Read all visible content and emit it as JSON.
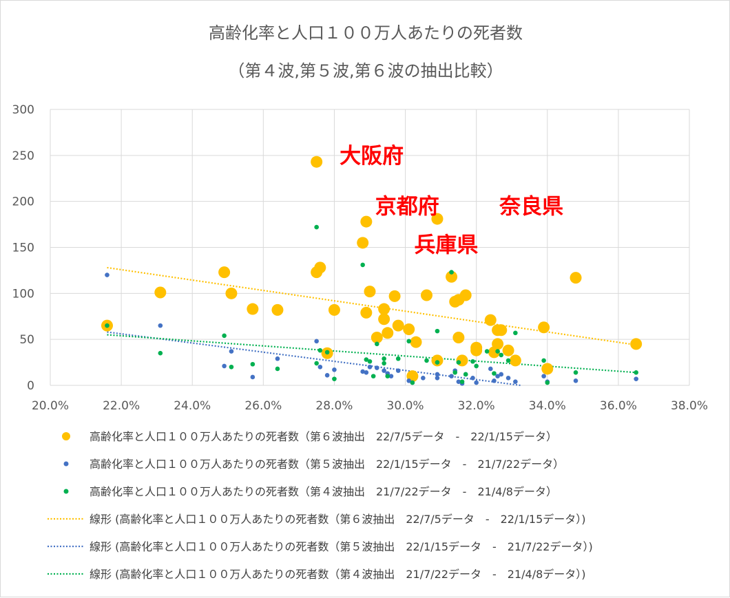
{
  "chart_data": {
    "type": "scatter",
    "title": "高齢化率と人口１００万人あたりの死者数",
    "subtitle": "（第４波,第５波,第６波の抽出比較）",
    "xlim": [
      0.2,
      0.38
    ],
    "ylim": [
      0,
      300
    ],
    "x_ticks": [
      "20.0%",
      "22.0%",
      "24.0%",
      "26.0%",
      "28.0%",
      "30.0%",
      "32.0%",
      "34.0%",
      "36.0%",
      "38.0%"
    ],
    "y_ticks": [
      "0",
      "50",
      "100",
      "150",
      "200",
      "250",
      "300"
    ],
    "grid": true,
    "legend_position": "bottom",
    "annotations": [
      {
        "text": "大阪府",
        "x": 0.2815,
        "y": 250
      },
      {
        "text": "京都府",
        "x": 0.2915,
        "y": 195
      },
      {
        "text": "奈良県",
        "x": 0.3265,
        "y": 195
      },
      {
        "text": "兵庫県",
        "x": 0.3025,
        "y": 153
      }
    ],
    "series": [
      {
        "name": "高齢化率と人口１００万人あたりの死者数（第６波抽出　22/7/5データ　-　22/1/15データ）",
        "color": "#ffc000",
        "marker": "large",
        "points": [
          [
            0.216,
            65
          ],
          [
            0.231,
            101
          ],
          [
            0.249,
            123
          ],
          [
            0.251,
            100
          ],
          [
            0.257,
            83
          ],
          [
            0.264,
            82
          ],
          [
            0.275,
            243
          ],
          [
            0.275,
            123
          ],
          [
            0.276,
            128
          ],
          [
            0.278,
            35
          ],
          [
            0.28,
            82
          ],
          [
            0.288,
            155
          ],
          [
            0.289,
            178
          ],
          [
            0.289,
            79
          ],
          [
            0.29,
            102
          ],
          [
            0.292,
            52
          ],
          [
            0.294,
            83
          ],
          [
            0.294,
            72
          ],
          [
            0.295,
            57
          ],
          [
            0.297,
            97
          ],
          [
            0.298,
            65
          ],
          [
            0.301,
            61
          ],
          [
            0.302,
            10
          ],
          [
            0.303,
            47
          ],
          [
            0.306,
            98
          ],
          [
            0.309,
            181
          ],
          [
            0.309,
            27
          ],
          [
            0.313,
            118
          ],
          [
            0.314,
            91
          ],
          [
            0.315,
            93
          ],
          [
            0.315,
            52
          ],
          [
            0.316,
            27
          ],
          [
            0.317,
            98
          ],
          [
            0.32,
            38
          ],
          [
            0.32,
            41
          ],
          [
            0.324,
            71
          ],
          [
            0.325,
            36
          ],
          [
            0.326,
            60
          ],
          [
            0.326,
            45
          ],
          [
            0.327,
            60
          ],
          [
            0.329,
            38
          ],
          [
            0.331,
            27
          ],
          [
            0.339,
            63
          ],
          [
            0.34,
            18
          ],
          [
            0.348,
            117
          ],
          [
            0.365,
            45
          ]
        ]
      },
      {
        "name": "高齢化率と人口１００万人あたりの死者数（第５波抽出　22/1/15データ　-　21/7/22データ）",
        "color": "#4472c4",
        "marker": "small",
        "points": [
          [
            0.216,
            120
          ],
          [
            0.231,
            65
          ],
          [
            0.249,
            21
          ],
          [
            0.251,
            37
          ],
          [
            0.257,
            9
          ],
          [
            0.264,
            29
          ],
          [
            0.275,
            48
          ],
          [
            0.276,
            20
          ],
          [
            0.278,
            11
          ],
          [
            0.28,
            17
          ],
          [
            0.288,
            15
          ],
          [
            0.289,
            14
          ],
          [
            0.29,
            20
          ],
          [
            0.292,
            19
          ],
          [
            0.294,
            16
          ],
          [
            0.295,
            13
          ],
          [
            0.296,
            10
          ],
          [
            0.298,
            16
          ],
          [
            0.301,
            5
          ],
          [
            0.302,
            3
          ],
          [
            0.305,
            8
          ],
          [
            0.309,
            12
          ],
          [
            0.309,
            8
          ],
          [
            0.313,
            10
          ],
          [
            0.314,
            16
          ],
          [
            0.315,
            4
          ],
          [
            0.316,
            2
          ],
          [
            0.317,
            12
          ],
          [
            0.319,
            8
          ],
          [
            0.32,
            3
          ],
          [
            0.324,
            18
          ],
          [
            0.325,
            5
          ],
          [
            0.326,
            10
          ],
          [
            0.327,
            12
          ],
          [
            0.329,
            8
          ],
          [
            0.331,
            4
          ],
          [
            0.339,
            10
          ],
          [
            0.34,
            4
          ],
          [
            0.348,
            5
          ],
          [
            0.365,
            7
          ]
        ]
      },
      {
        "name": "高齢化率と人口１００万人あたりの死者数（第４波抽出　21/7/22データ　-　21/4/8データ）",
        "color": "#00b050",
        "marker": "small",
        "points": [
          [
            0.216,
            65
          ],
          [
            0.231,
            35
          ],
          [
            0.249,
            54
          ],
          [
            0.251,
            20
          ],
          [
            0.257,
            23
          ],
          [
            0.264,
            18
          ],
          [
            0.275,
            172
          ],
          [
            0.275,
            24
          ],
          [
            0.276,
            38
          ],
          [
            0.278,
            36
          ],
          [
            0.28,
            7
          ],
          [
            0.288,
            131
          ],
          [
            0.289,
            28
          ],
          [
            0.29,
            26
          ],
          [
            0.291,
            10
          ],
          [
            0.292,
            45
          ],
          [
            0.294,
            24
          ],
          [
            0.294,
            29
          ],
          [
            0.295,
            10
          ],
          [
            0.298,
            29
          ],
          [
            0.301,
            48
          ],
          [
            0.302,
            3
          ],
          [
            0.306,
            27
          ],
          [
            0.309,
            59
          ],
          [
            0.309,
            25
          ],
          [
            0.313,
            123
          ],
          [
            0.314,
            14
          ],
          [
            0.315,
            25
          ],
          [
            0.316,
            4
          ],
          [
            0.317,
            12
          ],
          [
            0.319,
            26
          ],
          [
            0.32,
            21
          ],
          [
            0.323,
            37
          ],
          [
            0.325,
            13
          ],
          [
            0.326,
            37
          ],
          [
            0.327,
            33
          ],
          [
            0.329,
            27
          ],
          [
            0.331,
            57
          ],
          [
            0.339,
            27
          ],
          [
            0.34,
            3
          ],
          [
            0.348,
            14
          ],
          [
            0.365,
            14
          ]
        ]
      }
    ],
    "trendlines": [
      {
        "name": "線形 (高齢化率と人口１００万人あたりの死者数（第６波抽出　22/7/5データ　-　22/1/15データ）)",
        "color": "#ffc000",
        "x": [
          0.216,
          0.365
        ],
        "y": [
          128,
          44
        ]
      },
      {
        "name": "線形 (高齢化率と人口１００万人あたりの死者数（第５波抽出　22/1/15データ　-　21/7/22データ）)",
        "color": "#4472c4",
        "x": [
          0.216,
          0.3325
        ],
        "y": [
          58,
          0
        ]
      },
      {
        "name": "線形 (高齢化率と人口１００万人あたりの死者数（第４波抽出　21/7/22データ　-　21/4/8データ）)",
        "color": "#00b050",
        "x": [
          0.216,
          0.365
        ],
        "y": [
          55,
          14
        ]
      }
    ]
  }
}
